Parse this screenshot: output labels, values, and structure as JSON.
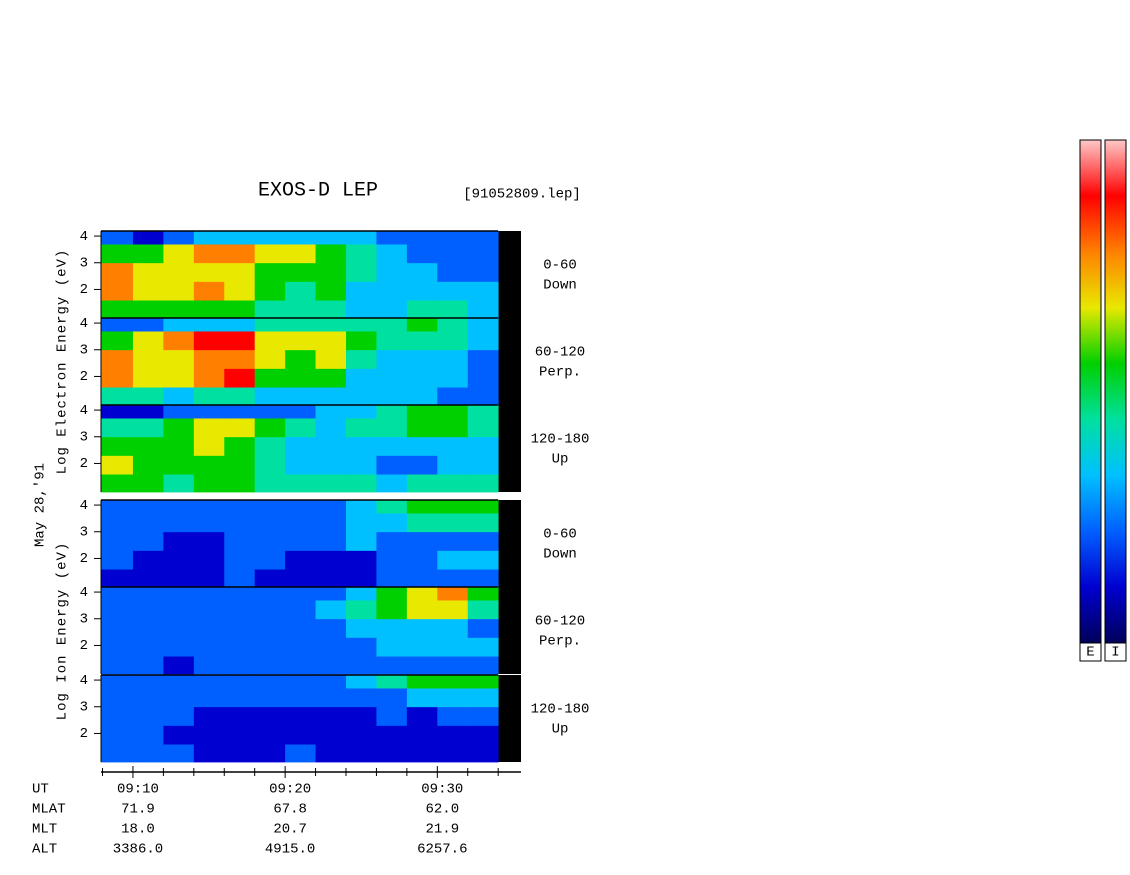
{
  "chart_data": {
    "type": "spectrogram",
    "title": "EXOS-D LEP",
    "file_label": "[91052809.lep]",
    "date_label": "May 28,'91",
    "xlim": [
      7.9,
      35.5
    ],
    "xticks": [
      {
        "value": 10,
        "label": "09:10"
      },
      {
        "value": 20,
        "label": "09:20"
      },
      {
        "value": 30,
        "label": "09:30"
      }
    ],
    "minor_xticks": [
      8,
      12,
      14,
      16,
      18,
      22,
      24,
      26,
      28,
      32,
      34
    ],
    "ylim": [
      0.93,
      4.19
    ],
    "yticks": [
      2,
      3,
      4
    ],
    "time_bins": [
      7.9,
      10,
      12,
      14,
      16,
      18,
      20,
      22,
      24,
      26,
      28,
      30,
      32,
      34
    ],
    "energy_bins": [
      0.93,
      1.6,
      2.3,
      3,
      3.7,
      4.19
    ],
    "colorscale": [
      "#00005a",
      "#0000d0",
      "#0060ff",
      "#00c0ff",
      "#00e0a0",
      "#00d000",
      "#e8e800",
      "#ff8000",
      "#ff0000",
      "#ffc8c8"
    ],
    "groups": [
      {
        "ylabel": "Log Electron Energy (eV)",
        "panels": [
          {
            "label_lines": [
              "0-60",
              "Down"
            ],
            "z": [
              [
                5,
                5,
                5,
                5,
                5,
                4,
                4,
                4,
                3,
                3,
                4,
                4,
                3
              ],
              [
                7,
                6,
                6,
                7,
                6,
                5,
                4,
                5,
                3,
                3,
                3,
                3,
                3
              ],
              [
                7,
                6,
                6,
                6,
                6,
                5,
                5,
                5,
                4,
                3,
                3,
                2,
                2
              ],
              [
                5,
                5,
                6,
                7,
                7,
                6,
                6,
                5,
                4,
                3,
                2,
                2,
                2
              ],
              [
                2,
                1,
                2,
                3,
                3,
                3,
                3,
                3,
                3,
                2,
                2,
                2,
                2
              ]
            ]
          },
          {
            "label_lines": [
              "60-120",
              "Perp."
            ],
            "z": [
              [
                4,
                4,
                3,
                4,
                4,
                3,
                3,
                3,
                3,
                3,
                3,
                2,
                2
              ],
              [
                7,
                6,
                6,
                7,
                8,
                5,
                5,
                5,
                3,
                3,
                3,
                3,
                2
              ],
              [
                7,
                6,
                6,
                7,
                7,
                6,
                5,
                6,
                4,
                3,
                3,
                3,
                2
              ],
              [
                5,
                6,
                7,
                8,
                8,
                6,
                6,
                6,
                5,
                4,
                4,
                4,
                3
              ],
              [
                2,
                2,
                3,
                3,
                3,
                4,
                4,
                4,
                4,
                4,
                5,
                4,
                3
              ]
            ]
          },
          {
            "label_lines": [
              "120-180",
              "Up"
            ],
            "z": [
              [
                5,
                5,
                4,
                5,
                5,
                4,
                4,
                4,
                4,
                3,
                4,
                4,
                4
              ],
              [
                6,
                5,
                5,
                5,
                5,
                4,
                3,
                3,
                3,
                2,
                2,
                3,
                3
              ],
              [
                5,
                5,
                5,
                6,
                5,
                4,
                3,
                3,
                3,
                3,
                3,
                3,
                3
              ],
              [
                4,
                4,
                5,
                6,
                6,
                5,
                4,
                3,
                4,
                4,
                5,
                5,
                4
              ],
              [
                1,
                1,
                2,
                2,
                2,
                2,
                2,
                3,
                3,
                4,
                5,
                5,
                4
              ]
            ]
          }
        ]
      },
      {
        "ylabel": "Log Ion Energy (eV)",
        "panels": [
          {
            "label_lines": [
              "0-60",
              "Down"
            ],
            "z": [
              [
                1,
                1,
                1,
                1,
                2,
                1,
                1,
                1,
                1,
                2,
                2,
                2,
                2
              ],
              [
                2,
                1,
                1,
                1,
                2,
                2,
                1,
                1,
                1,
                2,
                2,
                3,
                3
              ],
              [
                2,
                2,
                1,
                1,
                2,
                2,
                2,
                2,
                3,
                2,
                2,
                2,
                2
              ],
              [
                2,
                2,
                2,
                2,
                2,
                2,
                2,
                2,
                3,
                3,
                4,
                4,
                4
              ],
              [
                2,
                2,
                2,
                2,
                2,
                2,
                2,
                2,
                3,
                4,
                5,
                5,
                5
              ]
            ]
          },
          {
            "label_lines": [
              "60-120",
              "Perp."
            ],
            "z": [
              [
                2,
                2,
                1,
                2,
                2,
                2,
                2,
                2,
                2,
                2,
                2,
                2,
                2
              ],
              [
                2,
                2,
                2,
                2,
                2,
                2,
                2,
                2,
                2,
                3,
                3,
                3,
                3
              ],
              [
                2,
                2,
                2,
                2,
                2,
                2,
                2,
                2,
                3,
                3,
                3,
                3,
                2
              ],
              [
                2,
                2,
                2,
                2,
                2,
                2,
                2,
                3,
                4,
                5,
                6,
                6,
                4
              ],
              [
                2,
                2,
                2,
                2,
                2,
                2,
                2,
                2,
                3,
                5,
                6,
                7,
                5
              ]
            ]
          },
          {
            "label_lines": [
              "120-180",
              "Up"
            ],
            "z": [
              [
                2,
                2,
                2,
                1,
                1,
                1,
                2,
                1,
                1,
                1,
                1,
                1,
                1
              ],
              [
                2,
                2,
                1,
                1,
                1,
                1,
                1,
                1,
                1,
                1,
                1,
                1,
                1
              ],
              [
                2,
                2,
                2,
                1,
                1,
                1,
                1,
                1,
                1,
                2,
                1,
                2,
                2
              ],
              [
                2,
                2,
                2,
                2,
                2,
                2,
                2,
                2,
                2,
                2,
                3,
                3,
                3
              ],
              [
                2,
                2,
                2,
                2,
                2,
                2,
                2,
                2,
                3,
                4,
                5,
                5,
                5
              ]
            ]
          }
        ]
      }
    ],
    "ephemeris_time_label": "UT",
    "ephemeris": [
      {
        "label": "MLAT",
        "values": [
          "71.9",
          "67.8",
          "62.0"
        ]
      },
      {
        "label": "MLT",
        "values": [
          "18.0",
          "20.7",
          "21.9"
        ]
      },
      {
        "label": "ALT",
        "values": [
          "3386.0",
          "4915.0",
          "6257.6"
        ]
      }
    ],
    "colorbars": [
      "E",
      "I"
    ]
  }
}
